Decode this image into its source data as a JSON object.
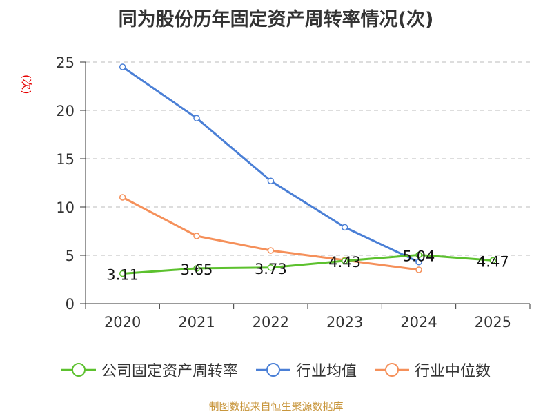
{
  "title": "同为股份历年固定资产周转率情况(次)",
  "y_unit": "(次)",
  "source": "制图数据来自恒生聚源数据库",
  "colors": {
    "company": "#5cc12e",
    "industry_avg": "#4a7fd6",
    "industry_median": "#f5905a",
    "grid": "#bbbbbb",
    "axis": "#333333",
    "y_unit": "#e60000",
    "source": "#c8963c"
  },
  "chart_data": {
    "type": "line",
    "title": "同为股份历年固定资产周转率情况(次)",
    "xlabel": "",
    "ylabel": "(次)",
    "categories": [
      "2020",
      "2021",
      "2022",
      "2023",
      "2024",
      "2025"
    ],
    "ylim": [
      0,
      25
    ],
    "yticks": [
      0,
      5,
      10,
      15,
      20,
      25
    ],
    "grid": true,
    "legend_position": "bottom",
    "series": [
      {
        "key": "company",
        "name": "公司固定资产周转率",
        "values": [
          3.11,
          3.65,
          3.73,
          4.43,
          5.04,
          4.47
        ],
        "data_labels": [
          "3.11",
          "3.65",
          "3.73",
          "4.43",
          "5.04",
          "4.47"
        ]
      },
      {
        "key": "industry_avg",
        "name": "行业均值",
        "values": [
          24.5,
          19.2,
          12.7,
          7.9,
          4.3,
          null
        ]
      },
      {
        "key": "industry_median",
        "name": "行业中位数",
        "values": [
          11.0,
          7.0,
          5.5,
          4.5,
          3.5,
          null
        ]
      }
    ]
  }
}
